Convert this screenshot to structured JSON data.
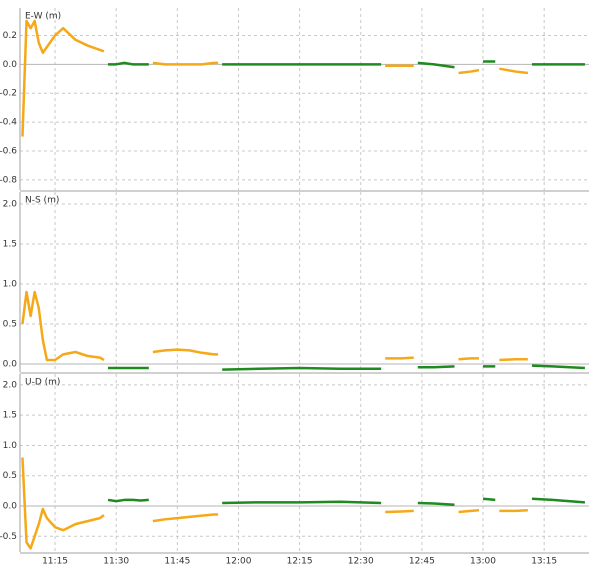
{
  "chart_data": [
    {
      "type": "line",
      "title": "E-W (m)",
      "x": [
        667,
        668,
        669,
        670,
        671,
        672,
        673,
        675,
        677,
        680,
        683,
        686,
        687,
        688,
        690,
        692,
        694,
        696,
        698,
        699,
        702,
        705,
        708,
        711,
        714,
        715,
        716,
        725,
        735,
        745,
        755,
        756,
        760,
        763,
        764,
        768,
        773,
        774,
        777,
        779,
        780,
        783,
        784,
        788,
        791,
        792,
        797,
        805
      ],
      "series": [
        {
          "color": "#f5a818",
          "values": [
            -0.5,
            0.3,
            0.25,
            0.3,
            0.15,
            0.08,
            0.12,
            0.2,
            0.25,
            0.17,
            0.13,
            0.1,
            0.09,
            null,
            null,
            null,
            null,
            null,
            null,
            0.01,
            0,
            0,
            0,
            0,
            0.01,
            0.01,
            null,
            null,
            null,
            null,
            null,
            -0.01,
            -0.01,
            -0.01,
            null,
            null,
            null,
            -0.06,
            -0.05,
            -0.04,
            null,
            null,
            -0.03,
            -0.05,
            -0.06,
            null,
            null,
            null
          ]
        },
        {
          "color": "#1f8a1f",
          "values": [
            null,
            null,
            null,
            null,
            null,
            null,
            null,
            null,
            null,
            null,
            null,
            null,
            null,
            0,
            0,
            0.01,
            0,
            0,
            0,
            null,
            null,
            null,
            null,
            null,
            null,
            null,
            0,
            0,
            0,
            0,
            0,
            null,
            null,
            null,
            0.01,
            0,
            -0.02,
            null,
            null,
            null,
            0.02,
            0.02,
            null,
            null,
            null,
            0,
            0,
            0
          ]
        }
      ],
      "ylim": [
        -0.87,
        0.39
      ],
      "yticks": [
        0.2,
        {
          "value": 0,
          "label": "0.0"
        },
        -0.2,
        -0.4,
        -0.6,
        -0.8
      ],
      "xlim": [
        666.4,
        806
      ],
      "grid": true
    },
    {
      "type": "line",
      "title": "N-S (m)",
      "x": [
        667,
        668,
        669,
        670,
        671,
        672,
        673,
        675,
        677,
        680,
        683,
        686,
        687,
        688,
        690,
        692,
        694,
        696,
        698,
        699,
        702,
        705,
        708,
        711,
        714,
        715,
        716,
        725,
        735,
        745,
        755,
        756,
        760,
        763,
        764,
        768,
        773,
        774,
        777,
        779,
        780,
        783,
        784,
        788,
        791,
        792,
        797,
        805
      ],
      "series": [
        {
          "color": "#f5a818",
          "values": [
            0.5,
            0.9,
            0.6,
            0.9,
            0.7,
            0.3,
            0.05,
            0.05,
            0.12,
            0.15,
            0.1,
            0.08,
            0.05,
            null,
            null,
            null,
            null,
            null,
            null,
            0.15,
            0.17,
            0.18,
            0.17,
            0.14,
            0.12,
            0.12,
            null,
            null,
            null,
            null,
            null,
            0.07,
            0.07,
            0.08,
            null,
            null,
            null,
            0.06,
            0.07,
            0.07,
            null,
            null,
            0.05,
            0.06,
            0.06,
            null,
            null,
            null
          ]
        },
        {
          "color": "#1f8a1f",
          "values": [
            null,
            null,
            null,
            null,
            null,
            null,
            null,
            null,
            null,
            null,
            null,
            null,
            null,
            -0.05,
            -0.05,
            -0.05,
            -0.05,
            -0.05,
            -0.05,
            null,
            null,
            null,
            null,
            null,
            null,
            null,
            -0.07,
            -0.06,
            -0.05,
            -0.06,
            -0.06,
            null,
            null,
            null,
            -0.04,
            -0.04,
            -0.03,
            null,
            null,
            null,
            -0.03,
            -0.03,
            null,
            null,
            null,
            -0.02,
            -0.03,
            -0.05
          ]
        }
      ],
      "ylim": [
        -0.1,
        2.15
      ],
      "yticks": [
        {
          "value": 2,
          "label": "2.0"
        },
        1.5,
        {
          "value": 1,
          "label": "1.0"
        },
        0.5,
        {
          "value": 0,
          "label": "0.0"
        }
      ],
      "xlim": [
        666.4,
        806
      ],
      "grid": true
    },
    {
      "type": "line",
      "title": "U-D (m)",
      "x": [
        667,
        668,
        669,
        670,
        671,
        672,
        673,
        675,
        677,
        680,
        683,
        686,
        687,
        688,
        690,
        692,
        694,
        696,
        698,
        699,
        702,
        705,
        708,
        711,
        714,
        715,
        716,
        725,
        735,
        745,
        755,
        756,
        760,
        763,
        764,
        768,
        773,
        774,
        777,
        779,
        780,
        783,
        784,
        788,
        791,
        792,
        797,
        805
      ],
      "series": [
        {
          "color": "#f5a818",
          "values": [
            0.8,
            -0.6,
            -0.7,
            -0.5,
            -0.3,
            -0.05,
            -0.2,
            -0.35,
            -0.4,
            -0.3,
            -0.25,
            -0.2,
            -0.15,
            null,
            null,
            null,
            null,
            null,
            null,
            -0.25,
            -0.22,
            -0.2,
            -0.18,
            -0.16,
            -0.14,
            -0.14,
            null,
            null,
            null,
            null,
            null,
            -0.1,
            -0.09,
            -0.08,
            null,
            null,
            null,
            -0.1,
            -0.08,
            -0.07,
            null,
            null,
            -0.08,
            -0.08,
            -0.07,
            null,
            null,
            null
          ]
        },
        {
          "color": "#1f8a1f",
          "values": [
            null,
            null,
            null,
            null,
            null,
            null,
            null,
            null,
            null,
            null,
            null,
            null,
            null,
            0.1,
            0.08,
            0.1,
            0.1,
            0.09,
            0.1,
            null,
            null,
            null,
            null,
            null,
            null,
            null,
            0.05,
            0.06,
            0.06,
            0.07,
            0.05,
            null,
            null,
            null,
            0.05,
            0.04,
            0.02,
            null,
            null,
            null,
            0.12,
            0.1,
            null,
            null,
            null,
            0.12,
            0.1,
            0.06
          ]
        }
      ],
      "ylim": [
        -0.76,
        2.18
      ],
      "yticks": [
        {
          "value": 2,
          "label": "2.0"
        },
        1.5,
        {
          "value": 1,
          "label": "1.0"
        },
        0.5,
        {
          "value": 0,
          "label": "0.0"
        },
        -0.5
      ],
      "xlim": [
        666.4,
        806
      ],
      "xticks": [
        {
          "value": 675,
          "label": "11:15"
        },
        {
          "value": 690,
          "label": "11:30"
        },
        {
          "value": 705,
          "label": "11:45"
        },
        {
          "value": 720,
          "label": "12:00"
        },
        {
          "value": 735,
          "label": "12:15"
        },
        {
          "value": 750,
          "label": "12:30"
        },
        {
          "value": 765,
          "label": "12:45"
        },
        {
          "value": 780,
          "label": "13:00"
        },
        {
          "value": 795,
          "label": "13:15"
        }
      ],
      "grid": true
    }
  ]
}
